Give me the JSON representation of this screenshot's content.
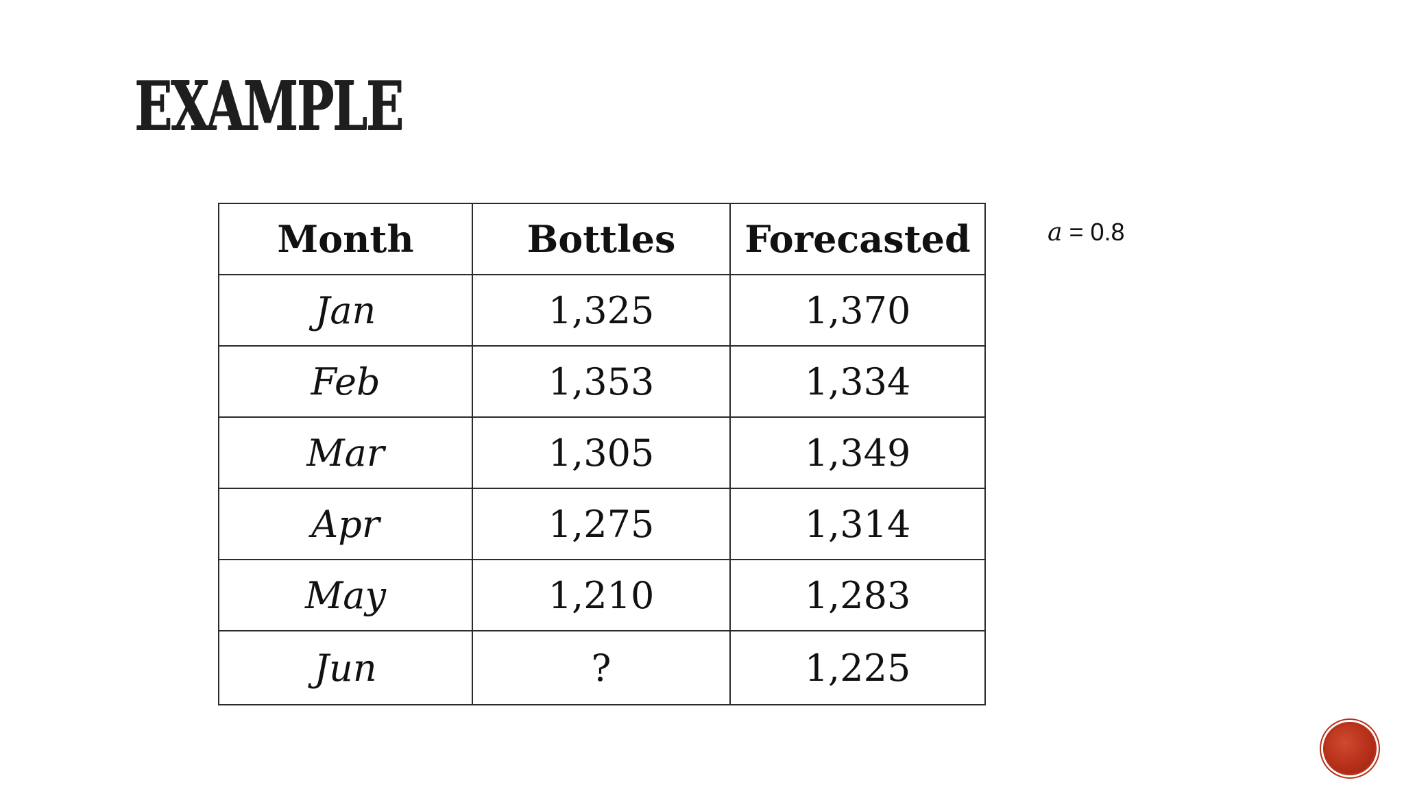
{
  "slide": {
    "title": "EXAMPLE",
    "alpha_note": {
      "symbol": "a",
      "text": " = 0.8"
    },
    "table": {
      "headers": [
        "Month",
        "Bottles",
        "Forecasted"
      ],
      "rows": [
        {
          "month": "Jan",
          "bottles": "1,325",
          "forecasted": "1,370"
        },
        {
          "month": "Feb",
          "bottles": "1,353",
          "forecasted": "1,334"
        },
        {
          "month": "Mar",
          "bottles": "1,305",
          "forecasted": "1,349"
        },
        {
          "month": "Apr",
          "bottles": "1,275",
          "forecasted": "1,314"
        },
        {
          "month": "May",
          "bottles": "1,210",
          "forecasted": "1,283"
        },
        {
          "month": "Jun",
          "bottles": "?",
          "forecasted": "1,225"
        }
      ]
    },
    "nav_button_color": "#b7301a"
  }
}
